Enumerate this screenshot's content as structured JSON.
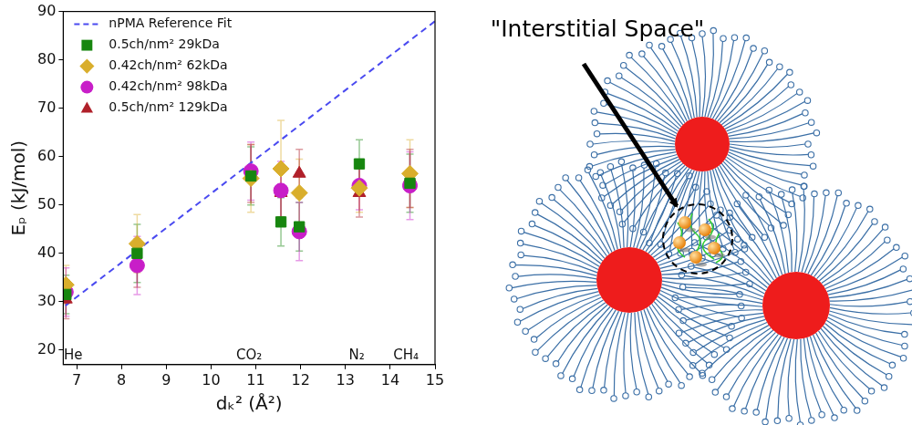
{
  "chart_data": {
    "type": "scatter",
    "x_label": "dₖ² (Å²)",
    "y_label": "Eₚ (kJ/mol)",
    "xlim": [
      6.7,
      15
    ],
    "xticks": [
      7,
      8,
      9,
      10,
      11,
      12,
      13,
      14,
      15
    ],
    "ylim": [
      17,
      90
    ],
    "yticks": [
      20,
      30,
      40,
      50,
      60,
      70,
      80,
      90
    ],
    "grid": false,
    "legend": "upper left",
    "series": [
      {
        "name": "nPMA Reference Fit",
        "type": "line",
        "line_style": "dashed",
        "color": "#4a4af0",
        "x": [
          6.75,
          15
        ],
        "values": [
          29.2,
          88.0
        ]
      },
      {
        "name": "0.5ch/nm² 29kDa",
        "type": "scatter",
        "marker": "square",
        "color": "#17860f",
        "x": [
          6.76,
          8.35,
          10.89,
          11.56,
          11.97,
          13.31,
          14.44
        ],
        "values": [
          31.5,
          40,
          56,
          46.5,
          45.5,
          58.5,
          54.5
        ],
        "errors": [
          4,
          6,
          6,
          5,
          5,
          5,
          6
        ]
      },
      {
        "name": "0.42ch/nm² 62kDa",
        "type": "scatter",
        "marker": "diamond",
        "color": "#d9ae2c",
        "x": [
          6.76,
          8.35,
          10.89,
          11.56,
          11.97,
          13.31,
          14.44
        ],
        "values": [
          33.5,
          42,
          55.5,
          57.5,
          52.5,
          53.5,
          56.5
        ],
        "errors": [
          4,
          6,
          7,
          10,
          7,
          5,
          7
        ]
      },
      {
        "name": "0.42ch/nm² 98kDa",
        "type": "scatter",
        "marker": "circle",
        "color": "#c81ec8",
        "x": [
          6.76,
          8.35,
          10.89,
          11.56,
          11.97,
          13.31,
          14.44
        ],
        "values": [
          32,
          37.5,
          57,
          53,
          44.5,
          54,
          54
        ],
        "errors": [
          5,
          6,
          6,
          6,
          6,
          5,
          7
        ]
      },
      {
        "name": "0.5ch/nm² 129kDa",
        "type": "scatter",
        "marker": "triangle",
        "color": "#b0202a",
        "x": [
          6.76,
          8.35,
          10.89,
          11.56,
          11.97,
          13.31,
          14.44
        ],
        "values": [
          30.5,
          38,
          56.5,
          52.5,
          56.5,
          52.5,
          55.5
        ],
        "errors": [
          4,
          5,
          6,
          5,
          5,
          5,
          6
        ]
      }
    ],
    "annotations": [
      {
        "text": "He",
        "x": 6.92,
        "y": 18.8
      },
      {
        "text": "CO₂",
        "x": 10.85,
        "y": 18.8
      },
      {
        "text": "N₂",
        "x": 13.25,
        "y": 18.8
      },
      {
        "text": "CH₄",
        "x": 14.35,
        "y": 18.8
      }
    ]
  },
  "diagram": {
    "label": "\"Interstitial Space\""
  }
}
